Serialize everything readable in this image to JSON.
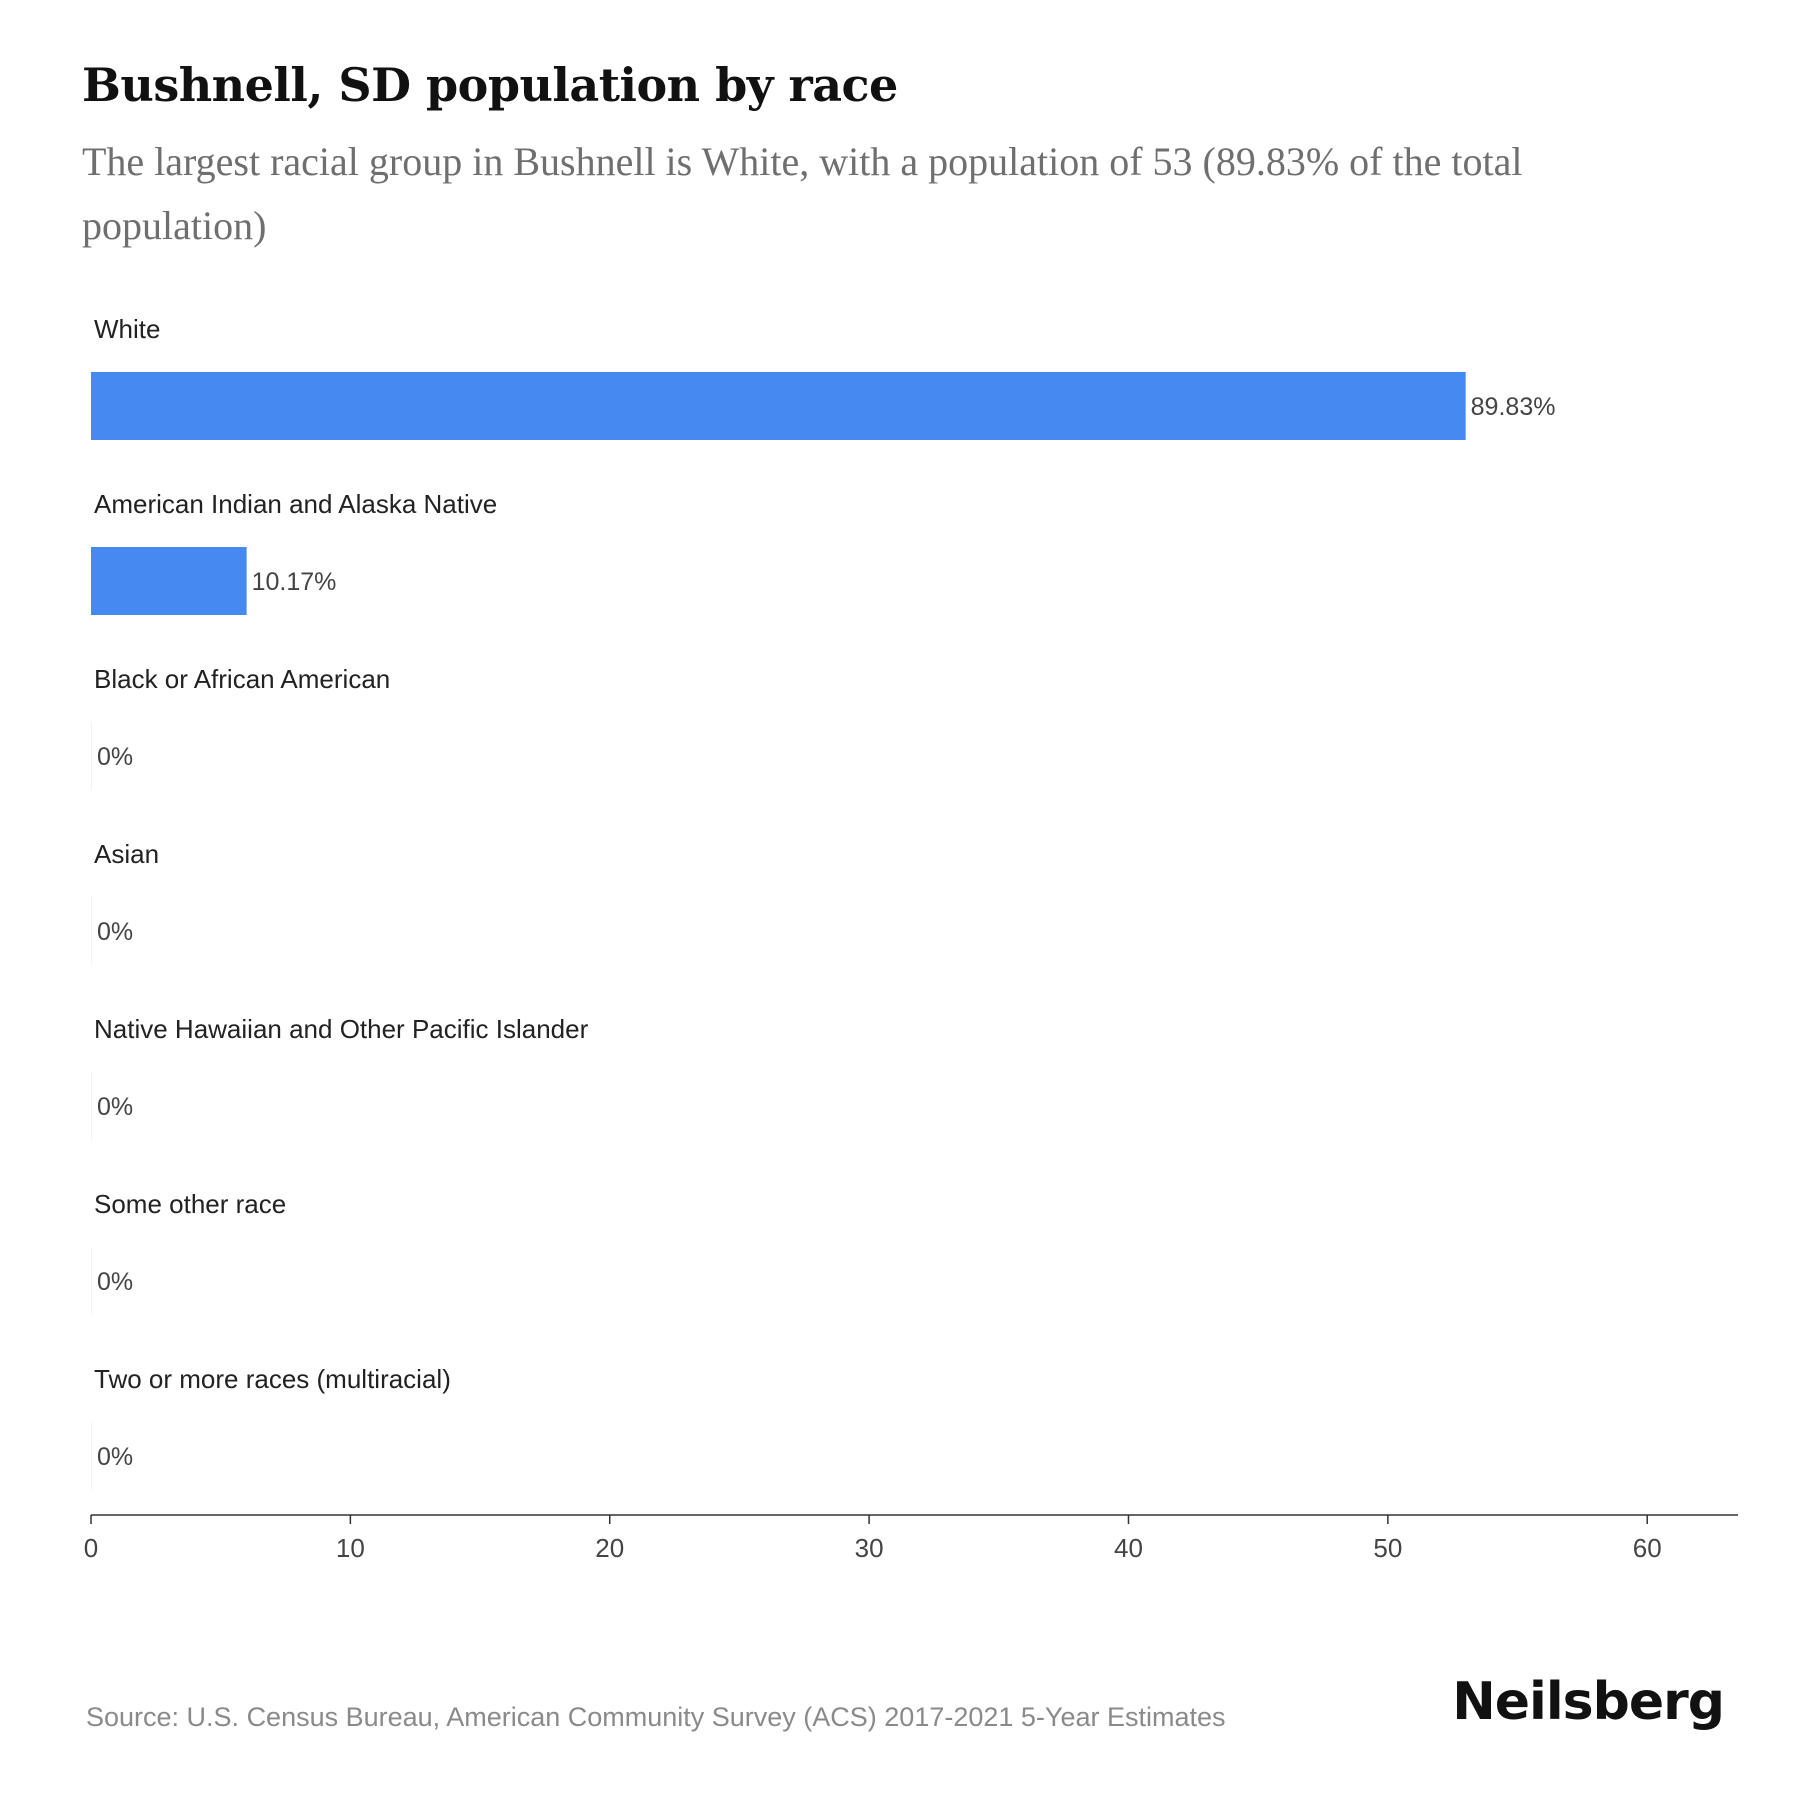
{
  "header": {
    "title": "Bushnell, SD population by race",
    "subtitle": "The largest racial group in Bushnell is White, with a population of 53 (89.83% of the total population)"
  },
  "chart_data": {
    "type": "bar",
    "orientation": "horizontal",
    "categories": [
      "White",
      "American Indian and Alaska Native",
      "Black or African American",
      "Asian",
      "Native Hawaiian and Other Pacific Islander",
      "Some other race",
      "Two or more races (multiracial)"
    ],
    "values": [
      53,
      6,
      0,
      0,
      0,
      0,
      0
    ],
    "data_labels": [
      "89.83%",
      "10.17%",
      "0%",
      "0%",
      "0%",
      "0%",
      "0%"
    ],
    "xlim": [
      0,
      63.5
    ],
    "xticks": [
      0,
      10,
      20,
      30,
      40,
      50,
      60
    ],
    "grid": false,
    "bar_color": "#4689f1"
  },
  "footer": {
    "source": "Source: U.S. Census Bureau, American Community Survey (ACS) 2017-2021 5-Year Estimates",
    "brand": "Neilsberg"
  }
}
